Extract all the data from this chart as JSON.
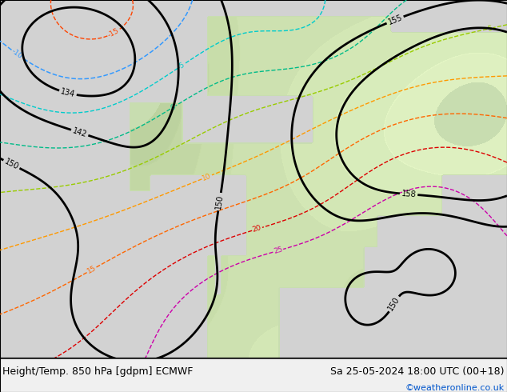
{
  "title_left": "Height/Temp. 850 hPa [gdpm] ECMWF",
  "title_right": "Sa 25-05-2024 18:00 UTC (00+18)",
  "credit": "©weatheronline.co.uk",
  "title_fontsize": 9,
  "credit_color": "#0055cc",
  "credit_fontsize": 8,
  "bottom_bar_color": "#f0f0f0"
}
